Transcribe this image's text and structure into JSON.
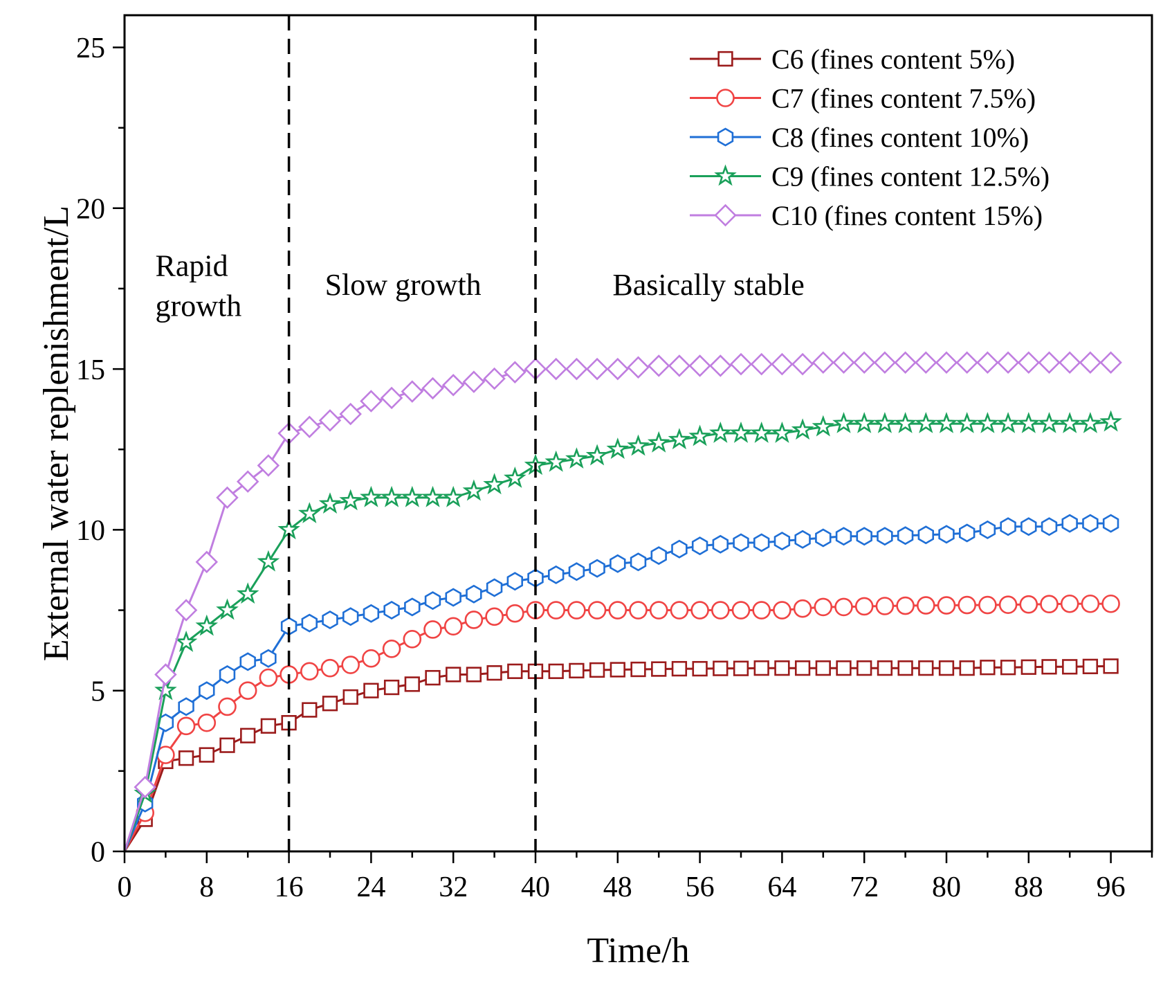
{
  "chart_data": {
    "type": "line",
    "title": "",
    "xlabel": "Time/h",
    "ylabel": "External water replenishment/L",
    "xlim": [
      0,
      100
    ],
    "ylim": [
      0,
      26
    ],
    "xticks": [
      0,
      8,
      16,
      24,
      32,
      40,
      48,
      56,
      64,
      72,
      80,
      88,
      96
    ],
    "yticks": [
      0,
      5,
      10,
      15,
      20,
      25
    ],
    "x_minor_step": 4,
    "y_minor_step": 2.5,
    "grid": false,
    "legend_position": "top-right",
    "vlines": [
      16,
      40
    ],
    "annotations": [
      {
        "id": "rapid",
        "lines": [
          "Rapid",
          "growth"
        ],
        "x": 3,
        "y": 17.9
      },
      {
        "id": "slow",
        "lines": [
          "Slow growth"
        ],
        "x": 19.5,
        "y": 17.3
      },
      {
        "id": "stable",
        "lines": [
          "Basically stable"
        ],
        "x": 47.5,
        "y": 17.3
      }
    ],
    "x": [
      0,
      2,
      4,
      6,
      8,
      10,
      12,
      14,
      16,
      18,
      20,
      22,
      24,
      26,
      28,
      30,
      32,
      34,
      36,
      38,
      40,
      42,
      44,
      46,
      48,
      50,
      52,
      54,
      56,
      58,
      60,
      62,
      64,
      66,
      68,
      70,
      72,
      74,
      76,
      78,
      80,
      82,
      84,
      86,
      88,
      90,
      92,
      94,
      96
    ],
    "series": [
      {
        "name": "C6 (fines content 5%)",
        "color": "#9b1b1b",
        "marker": "square",
        "values": [
          0,
          1.0,
          2.8,
          2.9,
          3.0,
          3.3,
          3.6,
          3.9,
          4.0,
          4.4,
          4.6,
          4.8,
          5.0,
          5.1,
          5.2,
          5.4,
          5.5,
          5.5,
          5.55,
          5.6,
          5.6,
          5.6,
          5.62,
          5.64,
          5.65,
          5.66,
          5.67,
          5.68,
          5.68,
          5.69,
          5.69,
          5.7,
          5.7,
          5.7,
          5.7,
          5.7,
          5.7,
          5.7,
          5.7,
          5.7,
          5.7,
          5.7,
          5.72,
          5.72,
          5.73,
          5.74,
          5.74,
          5.75,
          5.76
        ]
      },
      {
        "name": "C7 (fines content 7.5%)",
        "color": "#f04444",
        "marker": "circle",
        "values": [
          0,
          1.2,
          3.0,
          3.9,
          4.0,
          4.5,
          5.0,
          5.4,
          5.5,
          5.6,
          5.7,
          5.8,
          6.0,
          6.3,
          6.6,
          6.9,
          7.0,
          7.2,
          7.3,
          7.4,
          7.5,
          7.5,
          7.5,
          7.5,
          7.5,
          7.5,
          7.5,
          7.5,
          7.5,
          7.5,
          7.5,
          7.5,
          7.5,
          7.55,
          7.6,
          7.6,
          7.62,
          7.63,
          7.64,
          7.65,
          7.65,
          7.66,
          7.66,
          7.67,
          7.68,
          7.69,
          7.7,
          7.7,
          7.7
        ]
      },
      {
        "name": "C8 (fines content 10%)",
        "color": "#1f6fd6",
        "marker": "hexagon",
        "values": [
          0,
          1.5,
          4.0,
          4.5,
          5.0,
          5.5,
          5.9,
          6.0,
          7.0,
          7.1,
          7.2,
          7.3,
          7.4,
          7.5,
          7.6,
          7.8,
          7.9,
          8.0,
          8.2,
          8.4,
          8.5,
          8.6,
          8.7,
          8.8,
          8.95,
          9.0,
          9.2,
          9.4,
          9.5,
          9.55,
          9.6,
          9.6,
          9.65,
          9.7,
          9.75,
          9.8,
          9.8,
          9.8,
          9.82,
          9.84,
          9.86,
          9.9,
          10.0,
          10.1,
          10.1,
          10.1,
          10.2,
          10.2,
          10.2
        ]
      },
      {
        "name": "C9 (fines content 12.5%)",
        "color": "#1aa05a",
        "marker": "star",
        "values": [
          0,
          1.8,
          5.0,
          6.5,
          7.0,
          7.5,
          8.0,
          9.0,
          10.0,
          10.5,
          10.8,
          10.9,
          11.0,
          11.0,
          11.0,
          11.0,
          11.0,
          11.2,
          11.4,
          11.6,
          12.0,
          12.1,
          12.2,
          12.3,
          12.5,
          12.6,
          12.7,
          12.8,
          12.9,
          13.0,
          13.0,
          13.0,
          13.0,
          13.1,
          13.2,
          13.3,
          13.3,
          13.3,
          13.3,
          13.3,
          13.3,
          13.3,
          13.3,
          13.3,
          13.3,
          13.3,
          13.3,
          13.3,
          13.35
        ]
      },
      {
        "name": "C10 (fines content 15%)",
        "color": "#c07ee0",
        "marker": "diamond",
        "values": [
          0,
          2.0,
          5.5,
          7.5,
          9.0,
          11.0,
          11.5,
          12.0,
          13.0,
          13.2,
          13.4,
          13.6,
          14.0,
          14.1,
          14.3,
          14.4,
          14.5,
          14.6,
          14.7,
          14.9,
          15.0,
          15.0,
          15.0,
          15.0,
          15.0,
          15.05,
          15.1,
          15.1,
          15.1,
          15.1,
          15.15,
          15.15,
          15.15,
          15.15,
          15.2,
          15.2,
          15.2,
          15.2,
          15.2,
          15.2,
          15.2,
          15.2,
          15.2,
          15.2,
          15.2,
          15.2,
          15.2,
          15.2,
          15.2
        ]
      }
    ]
  }
}
